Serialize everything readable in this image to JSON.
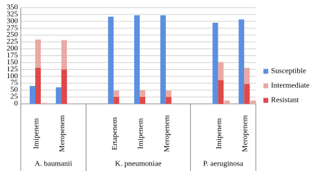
{
  "chart_data": {
    "type": "bar",
    "categories": [
      "Imipenem",
      "Meropenem",
      null,
      "Ertapenem",
      "Imipenem",
      "Meropenem",
      null,
      "Imipenem",
      "Meropenem"
    ],
    "groups": [
      "A. baumanii",
      "K. pneumoniae",
      "P. aeruginosa"
    ],
    "series": [
      {
        "name": "Susceptible",
        "color": "#5b8fe0",
        "values": [
          65,
          60,
          null,
          317,
          322,
          322,
          null,
          295,
          307
        ]
      },
      {
        "name": "Intermediate",
        "color": "#eba9a3",
        "values": [
          234,
          232,
          null,
          48,
          50,
          48,
          null,
          152,
          131
        ]
      },
      {
        "name": "Resistant",
        "color": "#e0484a",
        "values": [
          131,
          125,
          null,
          25,
          25,
          25,
          null,
          86,
          72
        ]
      },
      {
        "color": "#eba9a3",
        "values": [
          3,
          2,
          null,
          null,
          null,
          null,
          null,
          12,
          12
        ]
      }
    ],
    "ylim": [
      0,
      350
    ],
    "yticks": [
      0,
      25,
      50,
      75,
      100,
      125,
      150,
      175,
      200,
      225,
      250,
      275,
      300,
      325,
      350
    ],
    "grid": true
  }
}
